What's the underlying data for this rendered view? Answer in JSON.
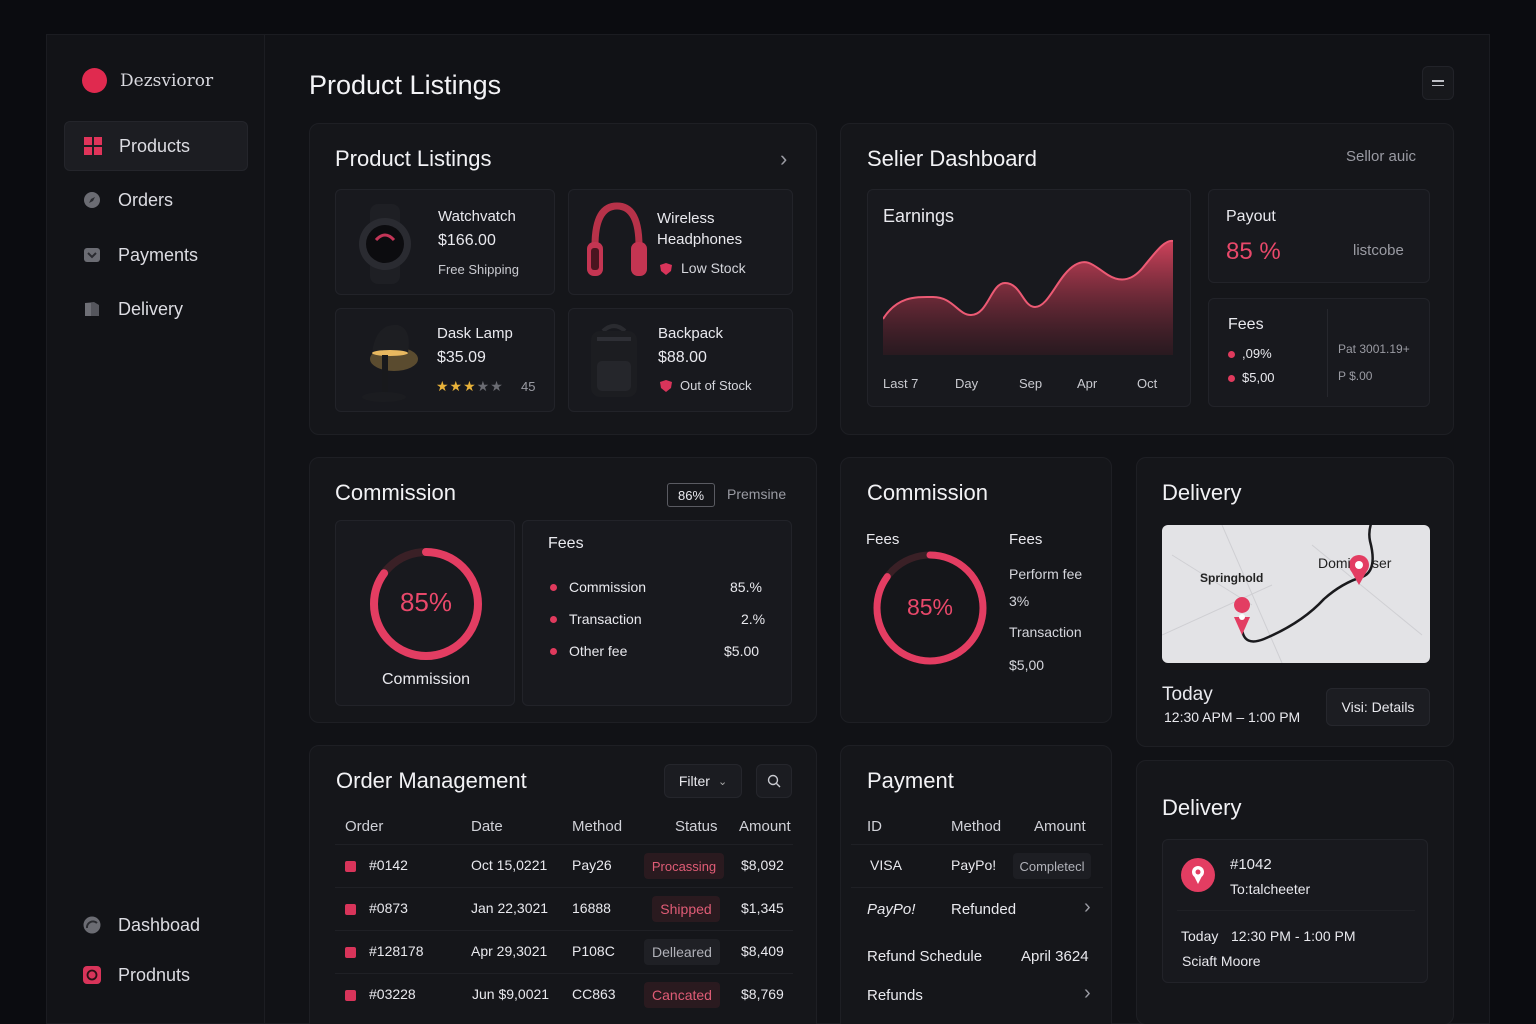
{
  "brand": {
    "name": "Dezsvioror"
  },
  "sidebar": {
    "items": [
      {
        "label": "Products"
      },
      {
        "label": "Orders"
      },
      {
        "label": "Payments"
      },
      {
        "label": "Delivery"
      }
    ],
    "bottom": [
      {
        "label": "Dashboad"
      },
      {
        "label": "Prodnuts"
      }
    ]
  },
  "page": {
    "title": "Product Listings"
  },
  "listings": {
    "title": "Product Listings",
    "products": [
      {
        "name": "Watchvatch",
        "price": "$166.00",
        "note": "Free Shipping"
      },
      {
        "name": "Wireless Headphones",
        "note": "Low Stock"
      },
      {
        "name": "Dask Lamp",
        "price": "$35.09",
        "rating_count": "45",
        "rating": 3
      },
      {
        "name": "Backpack",
        "price": "$88.00",
        "note": "Out of Stock"
      }
    ]
  },
  "seller": {
    "title": "Selier Dashboard",
    "subtitle": "Sellor auic",
    "earnings": {
      "title": "Earnings",
      "x_labels": [
        "Last 7",
        "Day",
        "Sep",
        "Apr",
        "Oct"
      ]
    },
    "payout": {
      "title": "Payout",
      "value": "85 %",
      "note": "listcobe"
    },
    "fees": {
      "title": "Fees",
      "items": [
        ",09%",
        "$5,00"
      ],
      "right": [
        "Pat 3001.19+",
        "P $.00"
      ]
    }
  },
  "commission1": {
    "title": "Commission",
    "badge": "86%",
    "badge_label": "Premsine",
    "ring_value": "85%",
    "ring_label": "Commission",
    "percent": 85,
    "fees_title": "Fees",
    "fees": [
      {
        "label": "Commission",
        "value": "85.%"
      },
      {
        "label": "Transaction",
        "value": "2.%"
      },
      {
        "label": "Other fee",
        "value": "$5.00"
      }
    ]
  },
  "commission2": {
    "title": "Commission",
    "fees_label": "Fees",
    "ring_value": "85%",
    "percent": 85,
    "fees_title": "Fees",
    "lines": [
      "Perform fee",
      "3%",
      "Transaction",
      "$5,00"
    ]
  },
  "delivery1": {
    "title": "Delivery",
    "map_labels": [
      "Springhold",
      "Domi",
      "ser"
    ],
    "when": "Today",
    "time": "12:30 APM – 1:00 PM",
    "button": "Visi: Details"
  },
  "orders": {
    "title": "Order Management",
    "filter": "Filter",
    "columns": [
      "Order",
      "Date",
      "Method",
      "Status",
      "Amount"
    ],
    "rows": [
      {
        "order": "#0142",
        "date": "Oct 15,0221",
        "method": "Pay26",
        "status": "Procassing",
        "amount": "$8,092"
      },
      {
        "order": "#0873",
        "date": "Jan 22,3021",
        "method": "16888",
        "status": "Shipped",
        "amount": "$1,345"
      },
      {
        "order": "#128178",
        "date": "Apr 29,3021",
        "method": "P108C",
        "status": "Delleared",
        "amount": "$8,409"
      },
      {
        "order": "#03228",
        "date": "Jun $9,0021",
        "method": "CC863",
        "status": "Cancated",
        "amount": "$8,769"
      }
    ]
  },
  "payment": {
    "title": "Payment",
    "columns": [
      "ID",
      "Method",
      "Amount"
    ],
    "row1": {
      "id": "VISA",
      "method": "PayPo!",
      "amount": "Completecl"
    },
    "row2": {
      "id": "PayPo!",
      "method": "Refunded"
    },
    "schedule": {
      "label": "Refund Schedule",
      "value": "April 3624"
    },
    "refunds": "Refunds"
  },
  "delivery2": {
    "title": "Delivery",
    "id": "#1042",
    "to": "To:talcheeter",
    "when": "Today",
    "time": "12:30 PM - 1:00 PM",
    "name": "Sciaft Moore"
  }
}
